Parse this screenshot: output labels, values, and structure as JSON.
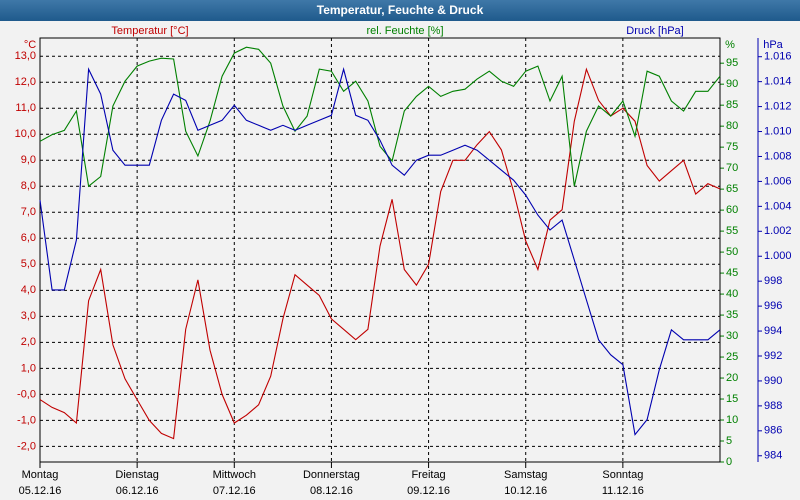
{
  "chart_data": {
    "type": "line",
    "title": "Temperatur, Feuchte & Druck",
    "y_unit": "°C",
    "y2_unit": "%",
    "y3_unit": "hPa",
    "x": [
      0,
      3,
      6,
      9,
      12,
      15,
      18,
      21,
      24,
      27,
      30,
      33,
      36,
      39,
      42,
      45,
      48,
      51,
      54,
      57,
      60,
      63,
      66,
      69,
      72,
      75,
      78,
      81,
      84,
      87,
      90,
      93,
      96,
      99,
      102,
      105,
      108,
      111,
      114,
      117,
      120,
      123,
      126,
      129,
      132,
      135,
      138,
      141,
      144,
      147,
      150,
      153,
      156,
      159,
      162,
      165,
      168
    ],
    "xlim": [
      0,
      168
    ],
    "xticks": [
      {
        "value": 0,
        "label": "Montag"
      },
      {
        "value": 24,
        "label": "Dienstag"
      },
      {
        "value": 48,
        "label": "Mittwoch"
      },
      {
        "value": 72,
        "label": "Donnerstag"
      },
      {
        "value": 96,
        "label": "Freitag"
      },
      {
        "value": 120,
        "label": "Samstag"
      },
      {
        "value": 144,
        "label": "Sonntag"
      }
    ],
    "x_dates": [
      "05.12.16",
      "06.12.16",
      "07.12.16",
      "08.12.16",
      "09.12.16",
      "10.12.16",
      "11.12.16"
    ],
    "ylim": [
      -2.6,
      13.7
    ],
    "yticks": [
      {
        "value": 13,
        "label": "13,0"
      },
      {
        "value": 12,
        "label": "12,0"
      },
      {
        "value": 11,
        "label": "11,0"
      },
      {
        "value": 10,
        "label": "10,0"
      },
      {
        "value": 9,
        "label": "9,0"
      },
      {
        "value": 8,
        "label": "8,0"
      },
      {
        "value": 7,
        "label": "7,0"
      },
      {
        "value": 6,
        "label": "6,0"
      },
      {
        "value": 5,
        "label": "5,0"
      },
      {
        "value": 4,
        "label": "4,0"
      },
      {
        "value": 3,
        "label": "3,0"
      },
      {
        "value": 2,
        "label": "2,0"
      },
      {
        "value": 1,
        "label": "1,0"
      },
      {
        "value": 0,
        "label": "-0,0"
      },
      {
        "value": -1,
        "label": "-1,0"
      },
      {
        "value": -2,
        "label": "-2,0"
      }
    ],
    "y2lim": [
      0,
      101
    ],
    "y2ticks": [
      0,
      5,
      10,
      15,
      20,
      25,
      30,
      35,
      40,
      45,
      50,
      55,
      60,
      65,
      70,
      75,
      80,
      85,
      90,
      95
    ],
    "y3lim": [
      983.5,
      1017.5
    ],
    "y3ticks": [
      984,
      986,
      988,
      990,
      992,
      994,
      996,
      998,
      {
        "value": 1000,
        "label": "1.000"
      },
      {
        "value": 1002,
        "label": "1.002"
      },
      {
        "value": 1004,
        "label": "1.004"
      },
      {
        "value": 1006,
        "label": "1.006"
      },
      {
        "value": 1008,
        "label": "1.008"
      },
      {
        "value": 1010,
        "label": "1.010"
      },
      {
        "value": 1012,
        "label": "1.012"
      },
      {
        "value": 1014,
        "label": "1.014"
      },
      {
        "value": 1016,
        "label": "1.016"
      }
    ],
    "grid": true,
    "series": [
      {
        "name": "Temperatur [°C]",
        "color": "#c00000",
        "axis": "y",
        "values": [
          -0.2,
          -0.5,
          -0.7,
          -1.1,
          3.6,
          4.8,
          1.9,
          0.6,
          -0.2,
          -1.0,
          -1.5,
          -1.7,
          2.5,
          4.4,
          1.7,
          0.0,
          -1.1,
          -0.8,
          -0.4,
          0.7,
          2.9,
          4.6,
          4.2,
          3.8,
          2.9,
          2.5,
          2.1,
          2.5,
          5.7,
          7.5,
          4.8,
          4.2,
          5.0,
          7.8,
          9.0,
          9.0,
          9.6,
          10.1,
          9.4,
          7.8,
          5.9,
          4.8,
          6.7,
          7.1,
          10.5,
          12.5,
          11.3,
          10.7,
          11.0,
          10.5,
          8.8,
          8.2,
          8.6,
          9.0,
          7.7,
          8.1,
          7.9
        ]
      },
      {
        "name": "rel. Feuchte [%]",
        "color": "#008000",
        "axis": "y2",
        "values": [
          76.4,
          78,
          79,
          83.6,
          65.7,
          68,
          84.8,
          90.7,
          94.3,
          95.5,
          96.2,
          96,
          78.8,
          72.9,
          81.2,
          91.9,
          97.4,
          98.8,
          98.3,
          95,
          84.8,
          78.8,
          82.4,
          93.6,
          93.1,
          88.3,
          90.7,
          86,
          75.2,
          71.7,
          83.6,
          87.1,
          89.5,
          87.1,
          88.3,
          88.8,
          91.2,
          93.1,
          90.7,
          89.5,
          93.1,
          94.3,
          86,
          91.9,
          65.7,
          78.8,
          84.8,
          82.4,
          86,
          77.6,
          93.1,
          91.9,
          86,
          83.6,
          88.3,
          88.3,
          91.9
        ]
      },
      {
        "name": "Druck [hPa]",
        "color": "#0000b0",
        "axis": "y3",
        "values": [
          1004.5,
          997.3,
          997.3,
          1001.3,
          1015,
          1013,
          1008.5,
          1007.3,
          1007.3,
          1007.3,
          1010.9,
          1013,
          1012.5,
          1010.1,
          1010.5,
          1010.9,
          1012.1,
          1010.9,
          1010.5,
          1010.1,
          1010.5,
          1010.1,
          1010.5,
          1010.9,
          1011.3,
          1015,
          1011.3,
          1010.9,
          1009.3,
          1007.3,
          1006.5,
          1007.7,
          1008.1,
          1008.1,
          1008.5,
          1008.9,
          1008.5,
          1007.7,
          1006.9,
          1006.1,
          1004.9,
          1003.3,
          1002.1,
          1002.9,
          999.7,
          996.5,
          993.3,
          992.1,
          991.3,
          985.7,
          986.9,
          990.9,
          994.1,
          993.3,
          993.3,
          993.3,
          994.1
        ]
      }
    ]
  }
}
